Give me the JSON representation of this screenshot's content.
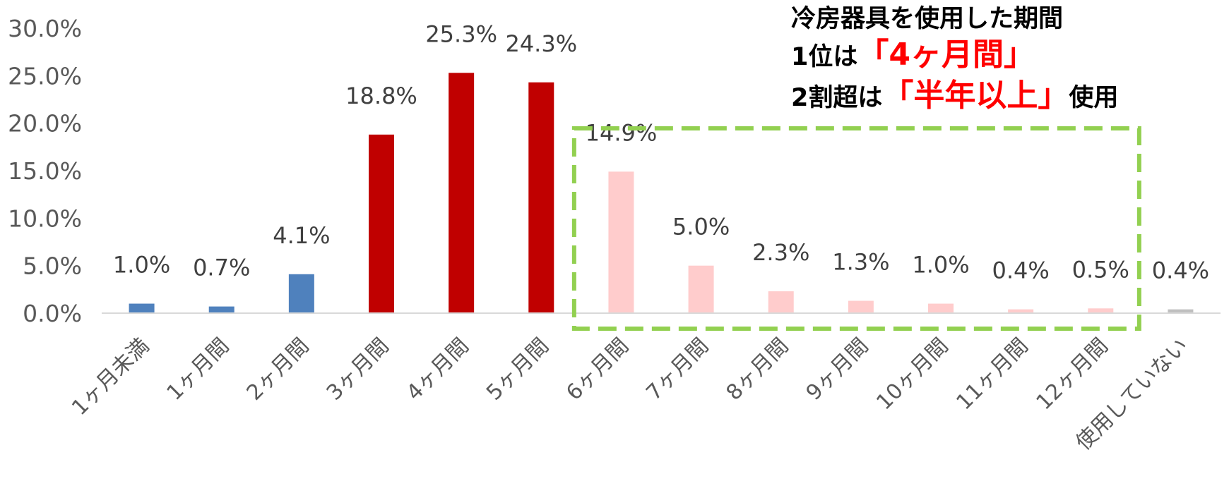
{
  "chart_data": {
    "type": "bar",
    "categories": [
      "1ヶ月未満",
      "1ヶ月間",
      "2ヶ月間",
      "3ヶ月間",
      "4ヶ月間",
      "5ヶ月間",
      "6ヶ月間",
      "7ヶ月間",
      "8ヶ月間",
      "9ヶ月間",
      "10ヶ月間",
      "11ヶ月間",
      "12ヶ月間",
      "使用していない"
    ],
    "values": [
      1.0,
      0.7,
      4.1,
      18.8,
      25.3,
      24.3,
      14.9,
      5.0,
      2.3,
      1.3,
      1.0,
      0.4,
      0.5,
      0.4
    ],
    "data_labels": [
      "1.0%",
      "0.7%",
      "4.1%",
      "18.8%",
      "25.3%",
      "24.3%",
      "14.9%",
      "5.0%",
      "2.3%",
      "1.3%",
      "1.0%",
      "0.4%",
      "0.5%",
      "0.4%"
    ],
    "bar_colors": [
      "#4f81bd",
      "#4f81bd",
      "#4f81bd",
      "#c00000",
      "#c00000",
      "#c00000",
      "#ffcccc",
      "#ffcccc",
      "#ffcccc",
      "#ffcccc",
      "#ffcccc",
      "#ffcccc",
      "#ffcccc",
      "#bfbfbf"
    ],
    "y_ticks": [
      "0.0%",
      "5.0%",
      "10.0%",
      "15.0%",
      "20.0%",
      "25.0%",
      "30.0%"
    ],
    "ylim": [
      0,
      30
    ],
    "grid": false,
    "highlight_box": {
      "from_category": "6ヶ月間",
      "to_category": "12ヶ月間",
      "color": "#92d050",
      "style": "dashed"
    }
  },
  "callout": {
    "line1": "冷房器具を使用した期間",
    "line2_prefix": "1位は",
    "line2_highlight": "「4ヶ月間」",
    "line3_prefix": "2割超は",
    "line3_highlight": "「半年以上」",
    "line3_suffix": "使用",
    "highlight_color": "#ff0000"
  }
}
